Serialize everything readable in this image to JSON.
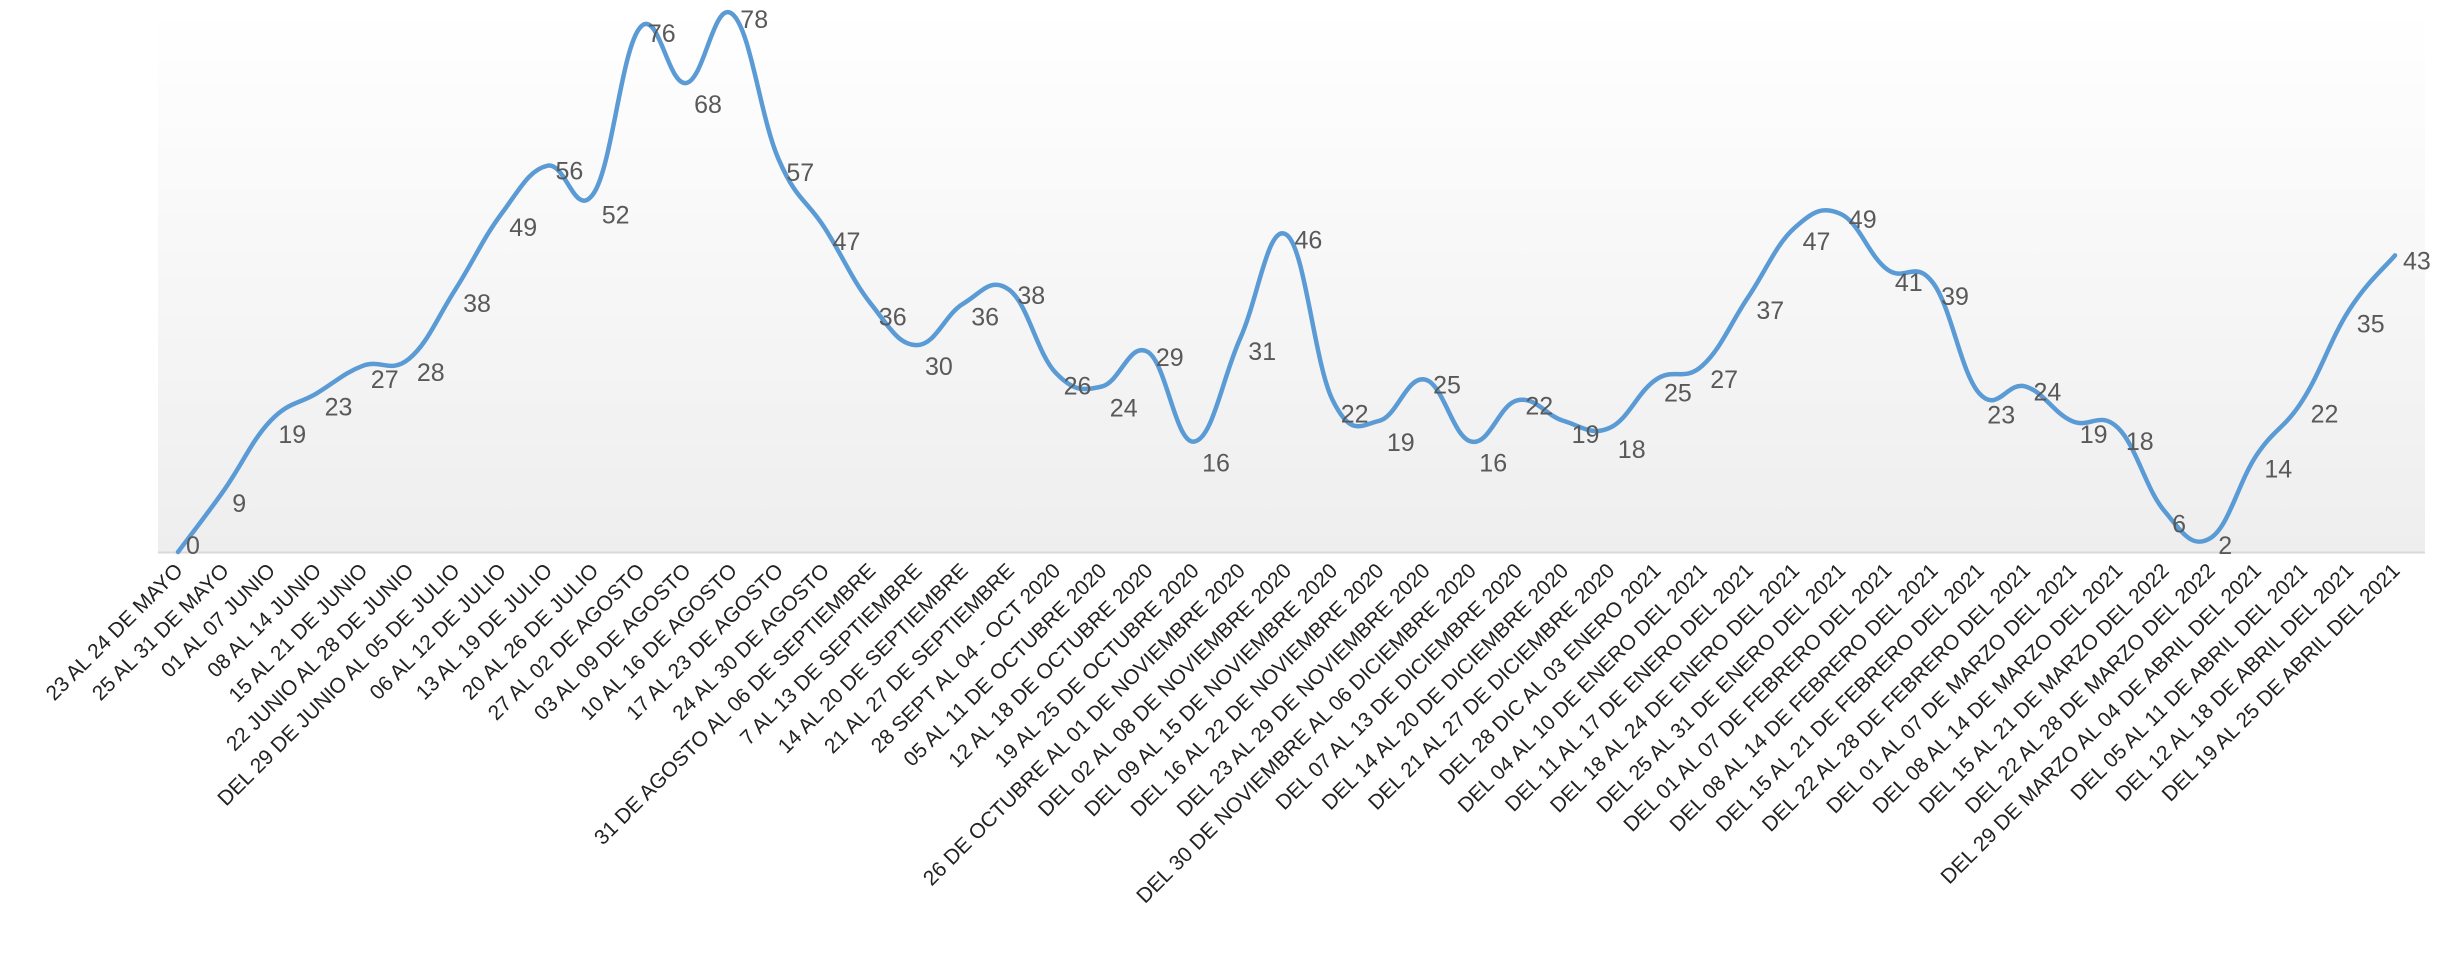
{
  "chart_data": {
    "type": "line",
    "title": "",
    "xlabel": "",
    "ylabel": "",
    "ylim": [
      0,
      78
    ],
    "grid": false,
    "legend": "none",
    "smooth": true,
    "colors": {
      "line": "#5B9BD5",
      "plot_bg_top": "#ffffff",
      "plot_bg_bottom": "#eeeeee",
      "axis": "#d9d9d9",
      "label_text": "#595959",
      "category_text": "#222222"
    },
    "categories": [
      "23 AL 24 DE MAYO",
      "25 AL 31 DE MAYO",
      "01 AL 07 JUNIO",
      "08 AL 14 JUNIO",
      "15 AL 21 DE JUNIO",
      "22 JUNIO AL 28 DE JUNIO",
      "DEL 29 DE JUNIO AL 05 DE JULIO",
      "06 AL 12 DE JULIO",
      "13 AL 19 DE JULIO",
      "20 AL 26 DE JULIO",
      "27 AL 02 DE AGOSTO",
      "03 AL 09 DE AGOSTO",
      "10 AL 16 DE AGOSTO",
      "17 AL 23 DE AGOSTO",
      "24 AL 30 DE AGOSTO",
      "31 DE AGOSTO AL 06 DE SEPTIEMBRE",
      "7 AL 13 DE SEPTIEMBRE",
      "14 AL 20 DE SEPTIEMBRE",
      "21 AL 27 DE SEPTIEMBRE",
      "28 SEPT AL 04 - OCT 2020",
      "05 AL 11 DE OCTUBRE 2020",
      "12 AL 18 DE OCTUBRE 2020",
      "19 AL 25 DE OCTUBRE 2020",
      "26 DE OCTUBRE AL 01 DE NOVIEMBRE 2020",
      "DEL 02 AL 08 DE NOVIEMBRE 2020",
      "DEL 09 AL 15 DE NOVIEMBRE 2020",
      "DEL 16 AL 22 DE NOVIEMBRE 2020",
      "DEL 23 AL 29 DE NOVIEMBRE 2020",
      "DEL 30 DE NOVIEMBRE AL 06 DICIEMBRE 2020",
      "DEL 07 AL 13 DE DICIEMBRE 2020",
      "DEL 14 AL 20 DE DICIEMBRE 2020",
      "DEL 21 AL 27 DE DICIEMBRE 2020",
      "DEL 28 DIC AL 03 ENERO 2021",
      "DEL 04 AL 10 DE ENERO DEL 2021",
      "DEL 11 AL 17 DE ENERO DEL 2021",
      "DEL 18 AL 24 DE ENERO DEL 2021",
      "DEL 25 AL 31 DE ENERO DEL 2021",
      "DEL 01 AL 07 DE FEBRERO DEL 2021",
      "DEL 08 AL 14 DE FEBRERO DEL 2021",
      "DEL 15 AL 21 DE FEBRERO DEL 2021",
      "DEL 22 AL 28 DE FEBRERO DEL 2021",
      "DEL 01 AL 07 DE MARZO DEL 2021",
      "DEL 08 AL 14 DE MARZO DEL 2021",
      "DEL 15 AL 21 DE MARZO DEL 2022",
      "DEL 22 AL 28 DE MARZO DEL 2022",
      "DEL 29 DE MARZO AL 04 DE ABRIL DEL 2021",
      "DEL 05 AL 11 DE ABRIL DEL 2021",
      "DEL 12 AL 18 DE ABRIL DEL 2021",
      "DEL 19 AL 25 DE ABRIL DEL 2021"
    ],
    "values": [
      0,
      9,
      19,
      23,
      27,
      28,
      38,
      49,
      56,
      52,
      76,
      68,
      78,
      57,
      47,
      36,
      30,
      36,
      38,
      26,
      24,
      29,
      16,
      31,
      46,
      22,
      19,
      25,
      16,
      22,
      19,
      18,
      25,
      27,
      37,
      47,
      49,
      41,
      39,
      23,
      24,
      19,
      18,
      6,
      2,
      14,
      22,
      35,
      43
    ]
  }
}
